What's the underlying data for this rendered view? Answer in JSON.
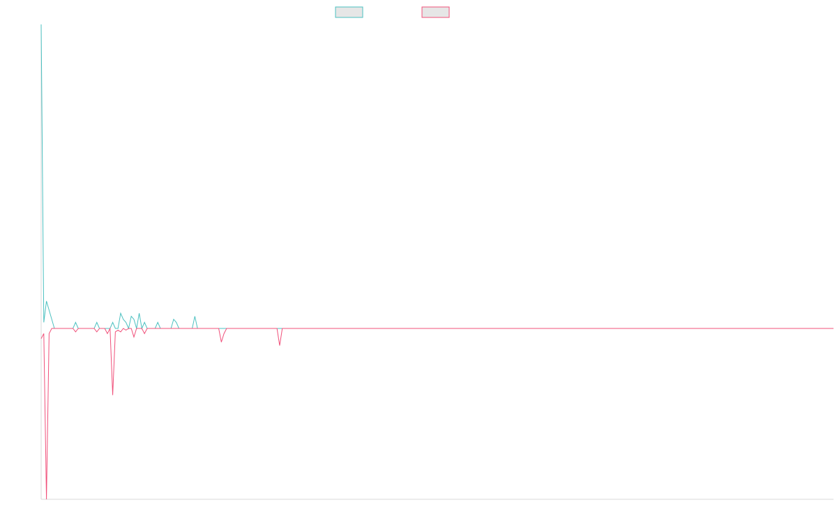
{
  "chart_data": {
    "type": "line",
    "title": "",
    "xlabel": "",
    "ylabel": "",
    "legend_position": "top-center",
    "grid": false,
    "ylim": [
      -1.0,
      1.0
    ],
    "x_count": 300,
    "series": [
      {
        "color": "#4bc0c0",
        "values": [
          1.0,
          0.02,
          0.09,
          0.06,
          0.03,
          0.0,
          0.0,
          0.0,
          0.0,
          0.0,
          0.0,
          0.0,
          0.0,
          0.02,
          0.0,
          0.0,
          0.0,
          0.0,
          0.0,
          0.0,
          0.0,
          0.02,
          0.0,
          0.0,
          0.0,
          0.0,
          0.0,
          0.02,
          0.0,
          0.0,
          0.05,
          0.03,
          0.02,
          0.0,
          0.04,
          0.03,
          0.0,
          0.05,
          0.0,
          0.02,
          0.0,
          0.0,
          0.0,
          0.0,
          0.02,
          0.0,
          0.0,
          0.0,
          0.0,
          0.0,
          0.03,
          0.02,
          0.0,
          0.0,
          0.0,
          0.0,
          0.0,
          0.0,
          0.04,
          0.0,
          0.0,
          0.0,
          0.0,
          0.0,
          0.0,
          0.0,
          0.0,
          0.0,
          0.0,
          0.0,
          0.0,
          0.0,
          0.0,
          0.0,
          0.0,
          0.0,
          0.0,
          0.0,
          0.0,
          0.0,
          0.0,
          0.0,
          0.0,
          0.0,
          0.0,
          0.0,
          0.0,
          0.0,
          0.0,
          0.0,
          0.0,
          0.0,
          0.0,
          0.0,
          0.0,
          0.0,
          0.0,
          0.0,
          0.0,
          0.0,
          0.0,
          0.0,
          0.0,
          0.0,
          0.0,
          0.0,
          0.0,
          0.0,
          0.0,
          0.0,
          0.0,
          0.0,
          0.0,
          0.0,
          0.0,
          0.0,
          0.0,
          0.0,
          0.0,
          0.0,
          0.0,
          0.0,
          0.0,
          0.0,
          0.0,
          0.0,
          0.0,
          0.0,
          0.0,
          0.0,
          0.0,
          0.0,
          0.0,
          0.0,
          0.0,
          0.0,
          0.0,
          0.0,
          0.0,
          0.0,
          0.0,
          0.0,
          0.0,
          0.0,
          0.0,
          0.0,
          0.0,
          0.0,
          0.0,
          0.0,
          0.0,
          0.0,
          0.0,
          0.0,
          0.0,
          0.0,
          0.0,
          0.0,
          0.0,
          0.0,
          0.0,
          0.0,
          0.0,
          0.0,
          0.0,
          0.0,
          0.0,
          0.0,
          0.0,
          0.0,
          0.0,
          0.0,
          0.0,
          0.0,
          0.0,
          0.0,
          0.0,
          0.0,
          0.0,
          0.0,
          0.0,
          0.0,
          0.0,
          0.0,
          0.0,
          0.0,
          0.0,
          0.0,
          0.0,
          0.0,
          0.0,
          0.0,
          0.0,
          0.0,
          0.0,
          0.0,
          0.0,
          0.0,
          0.0,
          0.0,
          0.0,
          0.0,
          0.0,
          0.0,
          0.0,
          0.0,
          0.0,
          0.0,
          0.0,
          0.0,
          0.0,
          0.0,
          0.0,
          0.0,
          0.0,
          0.0,
          0.0,
          0.0,
          0.0,
          0.0,
          0.0,
          0.0,
          0.0,
          0.0,
          0.0,
          0.0,
          0.0,
          0.0,
          0.0,
          0.0,
          0.0,
          0.0,
          0.0,
          0.0,
          0.0,
          0.0,
          0.0,
          0.0,
          0.0,
          0.0,
          0.0,
          0.0,
          0.0,
          0.0,
          0.0,
          0.0,
          0.0,
          0.0,
          0.0,
          0.0,
          0.0,
          0.0,
          0.0,
          0.0,
          0.0,
          0.0,
          0.0,
          0.0,
          0.0,
          0.0,
          0.0,
          0.0,
          0.0,
          0.0,
          0.0,
          0.0,
          0.0,
          0.0,
          0.0,
          0.0,
          0.0,
          0.0,
          0.0,
          0.0,
          0.0,
          0.0,
          0.0,
          0.0,
          0.0,
          0.0,
          0.0,
          0.0,
          0.0,
          0.0,
          0.0,
          0.0,
          0.0,
          0.0,
          0.0,
          0.0,
          0.0,
          0.0,
          0.0,
          0.0,
          0.0,
          0.0,
          0.0
        ]
      },
      {
        "color": "#f0507a",
        "values": [
          -0.06,
          -0.03,
          -1.0,
          -0.03,
          0.0,
          0.0,
          0.0,
          0.0,
          0.0,
          0.0,
          0.0,
          0.0,
          0.0,
          -0.02,
          0.0,
          0.0,
          0.0,
          0.0,
          0.0,
          0.0,
          0.0,
          -0.02,
          0.0,
          0.0,
          0.0,
          -0.03,
          0.0,
          -0.39,
          -0.02,
          -0.01,
          -0.02,
          0.0,
          -0.01,
          0.0,
          0.0,
          -0.05,
          0.0,
          0.0,
          0.0,
          -0.03,
          0.0,
          0.0,
          0.0,
          0.0,
          0.0,
          0.0,
          0.0,
          0.0,
          0.0,
          0.0,
          0.0,
          0.0,
          0.0,
          0.0,
          0.0,
          0.0,
          0.0,
          0.0,
          0.0,
          0.0,
          0.0,
          0.0,
          0.0,
          0.0,
          0.0,
          0.0,
          0.0,
          0.0,
          -0.08,
          -0.03,
          0.0,
          0.0,
          0.0,
          0.0,
          0.0,
          0.0,
          0.0,
          0.0,
          0.0,
          0.0,
          0.0,
          0.0,
          0.0,
          0.0,
          0.0,
          0.0,
          0.0,
          0.0,
          0.0,
          0.0,
          -0.1,
          0.0,
          0.0,
          0.0,
          0.0,
          0.0,
          0.0,
          0.0,
          0.0,
          0.0,
          0.0,
          0.0,
          0.0,
          0.0,
          0.0,
          0.0,
          0.0,
          0.0,
          0.0,
          0.0,
          0.0,
          0.0,
          0.0,
          0.0,
          0.0,
          0.0,
          0.0,
          0.0,
          0.0,
          0.0,
          0.0,
          0.0,
          0.0,
          0.0,
          0.0,
          0.0,
          0.0,
          0.0,
          0.0,
          0.0,
          0.0,
          0.0,
          0.0,
          0.0,
          0.0,
          0.0,
          0.0,
          0.0,
          0.0,
          0.0,
          0.0,
          0.0,
          0.0,
          0.0,
          0.0,
          0.0,
          0.0,
          0.0,
          0.0,
          0.0,
          0.0,
          0.0,
          0.0,
          0.0,
          0.0,
          0.0,
          0.0,
          0.0,
          0.0,
          0.0,
          0.0,
          0.0,
          0.0,
          0.0,
          0.0,
          0.0,
          0.0,
          0.0,
          0.0,
          0.0,
          0.0,
          0.0,
          0.0,
          0.0,
          0.0,
          0.0,
          0.0,
          0.0,
          0.0,
          0.0,
          0.0,
          0.0,
          0.0,
          0.0,
          0.0,
          0.0,
          0.0,
          0.0,
          0.0,
          0.0,
          0.0,
          0.0,
          0.0,
          0.0,
          0.0,
          0.0,
          0.0,
          0.0,
          0.0,
          0.0,
          0.0,
          0.0,
          0.0,
          0.0,
          0.0,
          0.0,
          0.0,
          0.0,
          0.0,
          0.0,
          0.0,
          0.0,
          0.0,
          0.0,
          0.0,
          0.0,
          0.0,
          0.0,
          0.0,
          0.0,
          0.0,
          0.0,
          0.0,
          0.0,
          0.0,
          0.0,
          0.0,
          0.0,
          0.0,
          0.0,
          0.0,
          0.0,
          0.0,
          0.0,
          0.0,
          0.0,
          0.0,
          0.0,
          0.0,
          0.0,
          0.0,
          0.0,
          0.0,
          0.0,
          0.0,
          0.0,
          0.0,
          0.0,
          0.0,
          0.0,
          0.0,
          0.0,
          0.0,
          0.0,
          0.0,
          0.0,
          0.0,
          0.0,
          0.0,
          0.0,
          0.0,
          0.0,
          0.0,
          0.0,
          0.0,
          0.0,
          0.0,
          0.0,
          0.0,
          0.0,
          0.0,
          0.0,
          0.0,
          0.0,
          0.0,
          0.0,
          0.0,
          0.0,
          0.0,
          0.0,
          0.0,
          0.0,
          0.0,
          0.0,
          0.0,
          0.0,
          0.0,
          0.0,
          0.0,
          0.0,
          0.0,
          0.0,
          0.0,
          0.0,
          0.0,
          0.0,
          0.0,
          0.0,
          0.0
        ]
      }
    ]
  }
}
